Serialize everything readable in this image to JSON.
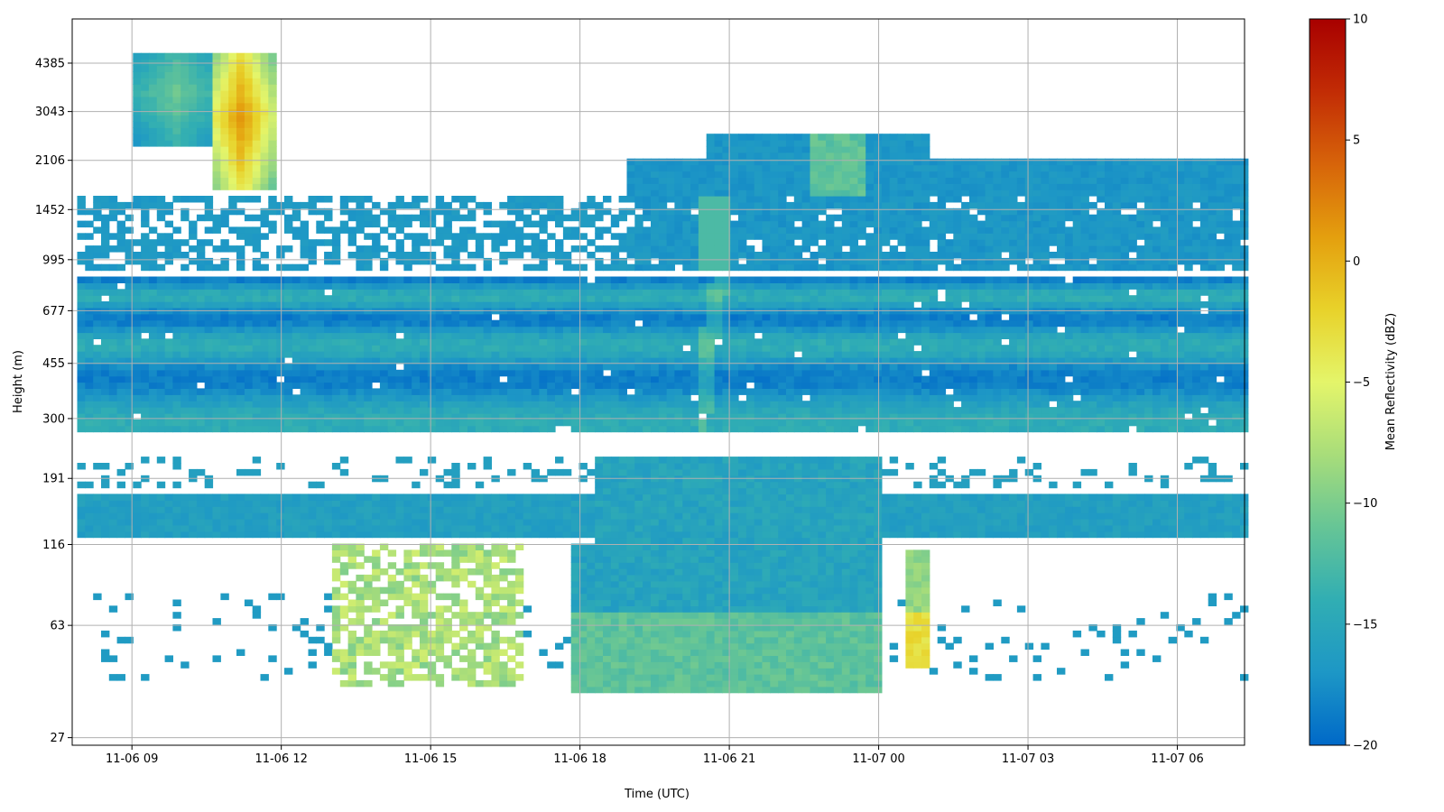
{
  "chart_data": {
    "type": "heatmap",
    "xlabel": "Time (UTC)",
    "ylabel": "Height (m)",
    "x_tick_labels": [
      "11-06 09",
      "11-06 12",
      "11-06 15",
      "11-06 18",
      "11-06 21",
      "11-07 00",
      "11-07 03",
      "11-07 06"
    ],
    "x_tick_hours": [
      9,
      12,
      15,
      18,
      21,
      24,
      27,
      30
    ],
    "x_range_hours": [
      7.8,
      31.35
    ],
    "y_tick_labels": [
      "27",
      "63",
      "116",
      "191",
      "300",
      "455",
      "677",
      "995",
      "1452",
      "2106",
      "3043",
      "4385"
    ],
    "y_scale": "log",
    "y_range_m": [
      25.5,
      6120
    ],
    "grid": true,
    "colorbar": {
      "label": "Mean Reflectivity (dBZ)",
      "range": [
        -20,
        10
      ],
      "ticks": [
        "10",
        "5",
        "0",
        "−5",
        "−10",
        "−15",
        "−20"
      ],
      "colors": [
        "#0069c8",
        "#1d97c6",
        "#31aeb3",
        "#66c596",
        "#a8dd7a",
        "#e4f56a",
        "#e8d22a",
        "#e49f0e",
        "#d7640a",
        "#c22c05",
        "#a80000"
      ]
    },
    "regions": [
      {
        "name": "upper cloud (left lobe)",
        "hours": [
          8.95,
          10.55
        ],
        "heights_m": [
          2350,
          4900
        ],
        "dbz": -11
      },
      {
        "name": "upper cloud (core)",
        "hours": [
          10.55,
          12.0
        ],
        "heights_m": [
          1650,
          4900
        ],
        "dbz": 1
      },
      {
        "name": "mid cloud layer",
        "hours": [
          8.0,
          31.3
        ],
        "heights_m": [
          1100,
          1600
        ],
        "dbz": -17
      },
      {
        "name": "high cloud deck",
        "hours": [
          19.0,
          31.3
        ],
        "heights_m": [
          1350,
          2700
        ],
        "dbz": -17
      },
      {
        "name": "descending plume",
        "hours": [
          22.8,
          23.6
        ],
        "heights_m": [
          1250,
          2600
        ],
        "dbz": -11
      },
      {
        "name": "main layer",
        "hours": [
          7.9,
          31.3
        ],
        "heights_m": [
          270,
          870
        ],
        "dbz": -16
      },
      {
        "name": "low layer",
        "hours": [
          7.9,
          31.3
        ],
        "heights_m": [
          125,
          170
        ],
        "dbz": -16
      },
      {
        "name": "afternoon block",
        "hours": [
          18.0,
          24.0
        ],
        "heights_m": [
          40,
          225
        ],
        "dbz": -15
      },
      {
        "name": "surface echoes",
        "hours": [
          13.0,
          16.8
        ],
        "heights_m": [
          42,
          115
        ],
        "dbz": -9
      },
      {
        "name": "isolated cell",
        "hours": [
          24.6,
          25.2
        ],
        "heights_m": [
          45,
          110
        ],
        "dbz": -3
      }
    ]
  }
}
